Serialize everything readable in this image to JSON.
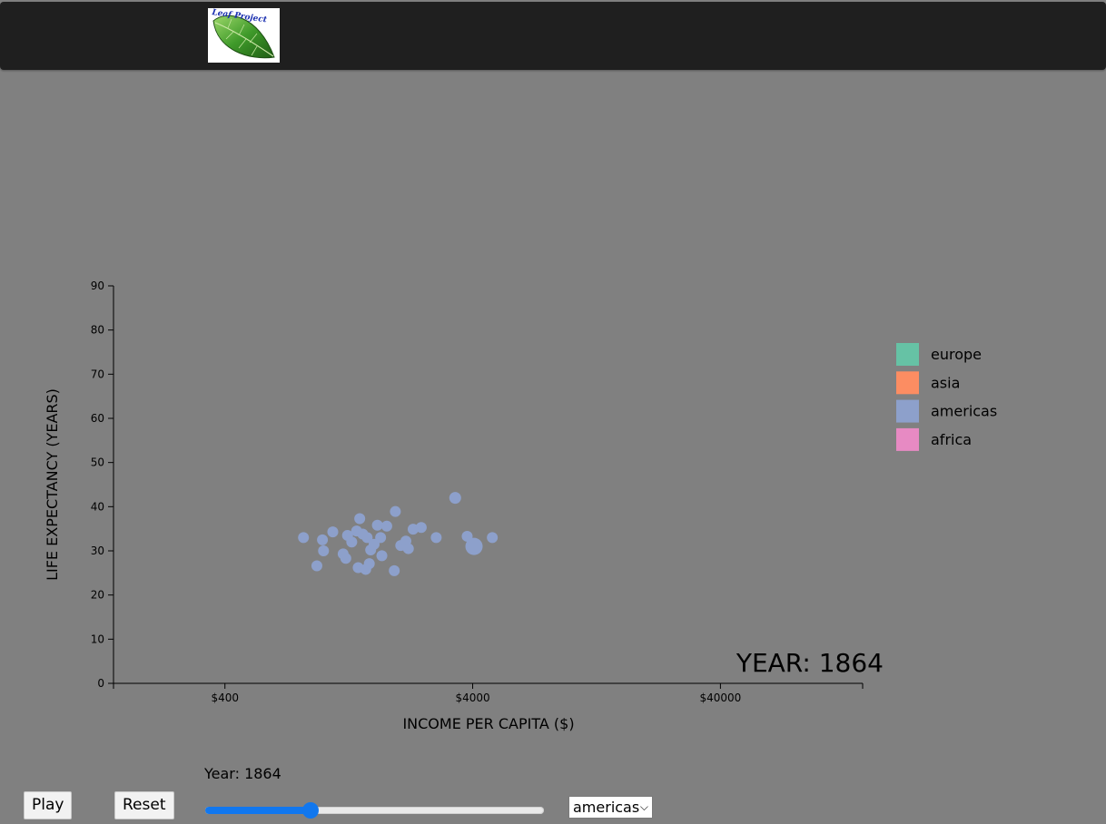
{
  "header": {
    "logo_text": "Leaf Project"
  },
  "chart_data": {
    "type": "scatter",
    "xlabel": "INCOME PER CAPITA ($)",
    "ylabel": "LIFE EXPECTANCY (YEARS)",
    "x_scale": "log",
    "xlim": [
      142,
      150000
    ],
    "ylim": [
      0,
      90
    ],
    "x_ticks": [
      400,
      4000,
      40000
    ],
    "x_tick_labels": [
      "$400",
      "$4000",
      "$40000"
    ],
    "y_ticks": [
      0,
      10,
      20,
      30,
      40,
      50,
      60,
      70,
      80,
      90
    ],
    "year_label": "YEAR: 1864",
    "legend_position": "right",
    "legend": [
      {
        "name": "europe",
        "color": "#66c2a5"
      },
      {
        "name": "asia",
        "color": "#fc8d62"
      },
      {
        "name": "americas",
        "color": "#8da0cb"
      },
      {
        "name": "africa",
        "color": "#e78ac3"
      }
    ],
    "series": [
      {
        "name": "americas",
        "color": "#8da0cb",
        "points": [
          {
            "x": 830,
            "y": 33,
            "r": 6
          },
          {
            "x": 940,
            "y": 26.6,
            "r": 6
          },
          {
            "x": 990,
            "y": 32.5,
            "r": 6
          },
          {
            "x": 1000,
            "y": 30,
            "r": 6
          },
          {
            "x": 1090,
            "y": 34.3,
            "r": 6
          },
          {
            "x": 1200,
            "y": 29.3,
            "r": 6
          },
          {
            "x": 1230,
            "y": 28.3,
            "r": 6
          },
          {
            "x": 1250,
            "y": 33.5,
            "r": 6
          },
          {
            "x": 1300,
            "y": 32,
            "r": 6
          },
          {
            "x": 1360,
            "y": 34.5,
            "r": 6
          },
          {
            "x": 1380,
            "y": 26.2,
            "r": 6
          },
          {
            "x": 1400,
            "y": 37.3,
            "r": 6
          },
          {
            "x": 1440,
            "y": 33.8,
            "r": 6
          },
          {
            "x": 1480,
            "y": 25.8,
            "r": 6
          },
          {
            "x": 1500,
            "y": 33,
            "r": 6
          },
          {
            "x": 1530,
            "y": 27.1,
            "r": 6
          },
          {
            "x": 1550,
            "y": 30.2,
            "r": 6
          },
          {
            "x": 1600,
            "y": 31.5,
            "r": 6
          },
          {
            "x": 1650,
            "y": 35.8,
            "r": 6
          },
          {
            "x": 1700,
            "y": 33,
            "r": 6
          },
          {
            "x": 1720,
            "y": 28.9,
            "r": 6
          },
          {
            "x": 1800,
            "y": 35.6,
            "r": 6
          },
          {
            "x": 1930,
            "y": 25.5,
            "r": 6
          },
          {
            "x": 1950,
            "y": 38.9,
            "r": 6
          },
          {
            "x": 2050,
            "y": 31.2,
            "r": 6
          },
          {
            "x": 2150,
            "y": 32.2,
            "r": 6
          },
          {
            "x": 2200,
            "y": 30.5,
            "r": 6
          },
          {
            "x": 2300,
            "y": 34.9,
            "r": 6
          },
          {
            "x": 2480,
            "y": 35.3,
            "r": 6
          },
          {
            "x": 2850,
            "y": 33,
            "r": 6
          },
          {
            "x": 3400,
            "y": 42,
            "r": 6.5
          },
          {
            "x": 3800,
            "y": 33.3,
            "r": 6
          },
          {
            "x": 4050,
            "y": 31,
            "r": 9.5
          },
          {
            "x": 4800,
            "y": 33,
            "r": 6
          }
        ]
      }
    ]
  },
  "controls": {
    "play_label": "Play",
    "reset_label": "Reset",
    "year_caption": "Year: 1864",
    "slider_fraction": 0.31,
    "continent_selected": "americas",
    "chevron_icon": "chevron-down-icon"
  }
}
